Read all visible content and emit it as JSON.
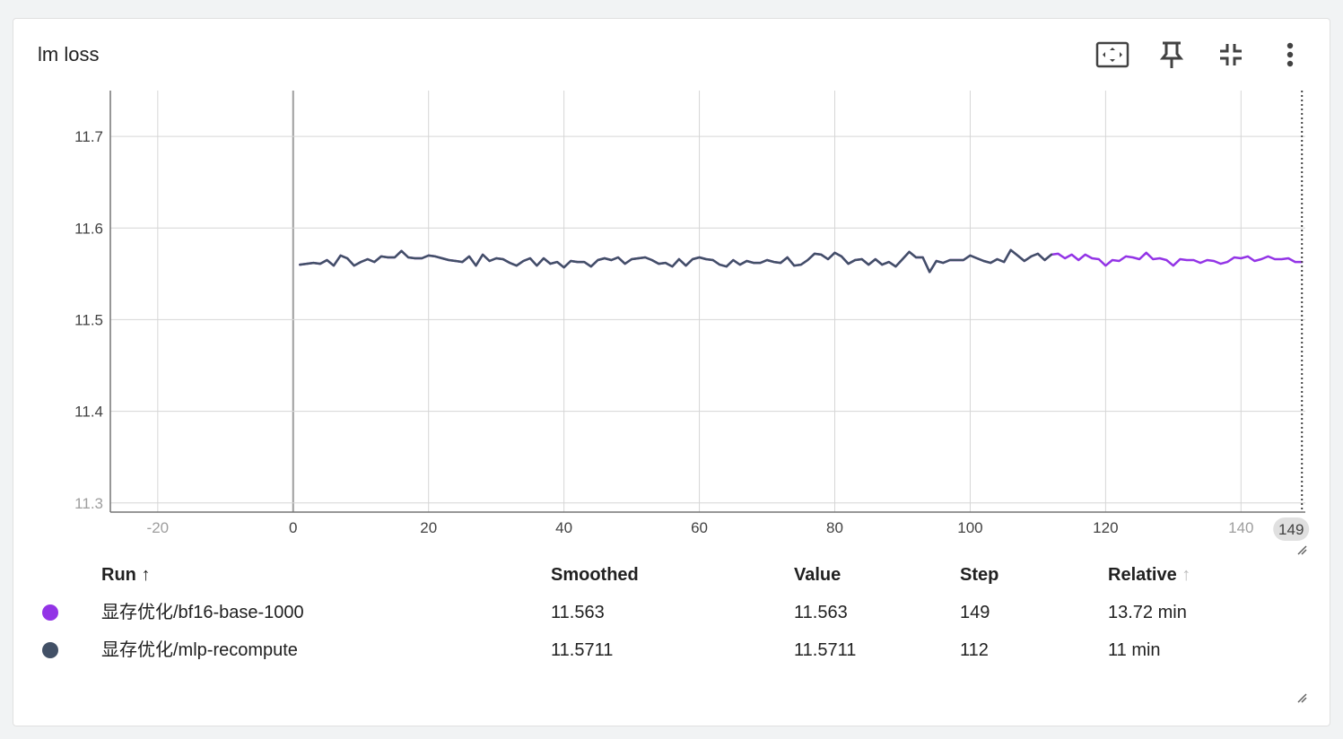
{
  "card": {
    "title": "lm loss",
    "toolbar": {
      "fit_icon": "fit-to-domain-icon",
      "pin_icon": "pin-icon",
      "collapse_icon": "collapse-icon",
      "more_icon": "more-vert-icon"
    }
  },
  "chart_data": {
    "type": "line",
    "title": "lm loss",
    "xlabel": "",
    "ylabel": "",
    "xlim": [
      -27,
      149.5
    ],
    "ylim": [
      11.29,
      11.75
    ],
    "x_ticks": [
      "-20",
      "0",
      "20",
      "40",
      "60",
      "80",
      "100",
      "120",
      "140"
    ],
    "x_tick_values": [
      -20,
      0,
      20,
      40,
      60,
      80,
      100,
      120,
      140
    ],
    "y_ticks": [
      "11.3",
      "11.4",
      "11.5",
      "11.6",
      "11.7"
    ],
    "y_tick_values": [
      11.3,
      11.4,
      11.5,
      11.6,
      11.7
    ],
    "hover_step_label": "149",
    "grid": true,
    "series": [
      {
        "name": "显存优化/bf16-base-1000",
        "color": "#9334e6",
        "x": [
          1,
          2,
          3,
          4,
          5,
          6,
          7,
          8,
          9,
          10,
          11,
          12,
          13,
          14,
          15,
          16,
          17,
          18,
          19,
          20,
          21,
          22,
          23,
          24,
          25,
          26,
          27,
          28,
          29,
          30,
          31,
          32,
          33,
          34,
          35,
          36,
          37,
          38,
          39,
          40,
          41,
          42,
          43,
          44,
          45,
          46,
          47,
          48,
          49,
          50,
          51,
          52,
          53,
          54,
          55,
          56,
          57,
          58,
          59,
          60,
          61,
          62,
          63,
          64,
          65,
          66,
          67,
          68,
          69,
          70,
          71,
          72,
          73,
          74,
          75,
          76,
          77,
          78,
          79,
          80,
          81,
          82,
          83,
          84,
          85,
          86,
          87,
          88,
          89,
          90,
          91,
          92,
          93,
          94,
          95,
          96,
          97,
          98,
          99,
          100,
          101,
          102,
          103,
          104,
          105,
          106,
          107,
          108,
          109,
          110,
          111,
          112,
          113,
          114,
          115,
          116,
          117,
          118,
          119,
          120,
          121,
          122,
          123,
          124,
          125,
          126,
          127,
          128,
          129,
          130,
          131,
          132,
          133,
          134,
          135,
          136,
          137,
          138,
          139,
          140,
          141,
          142,
          143,
          144,
          145,
          146,
          147,
          148,
          149
        ],
        "values": [
          11.56,
          11.561,
          11.562,
          11.561,
          11.565,
          11.559,
          11.57,
          11.567,
          11.559,
          11.563,
          11.566,
          11.563,
          11.569,
          11.568,
          11.568,
          11.575,
          11.568,
          11.567,
          11.567,
          11.57,
          11.569,
          11.567,
          11.565,
          11.564,
          11.563,
          11.569,
          11.559,
          11.571,
          11.564,
          11.567,
          11.566,
          11.562,
          11.559,
          11.564,
          11.567,
          11.559,
          11.567,
          11.561,
          11.563,
          11.557,
          11.564,
          11.563,
          11.563,
          11.558,
          11.565,
          11.567,
          11.565,
          11.568,
          11.561,
          11.566,
          11.567,
          11.568,
          11.565,
          11.561,
          11.562,
          11.558,
          11.566,
          11.559,
          11.566,
          11.568,
          11.566,
          11.565,
          11.56,
          11.558,
          11.565,
          11.56,
          11.564,
          11.562,
          11.562,
          11.565,
          11.563,
          11.562,
          11.568,
          11.559,
          11.56,
          11.565,
          11.572,
          11.571,
          11.566,
          11.573,
          11.569,
          11.561,
          11.565,
          11.566,
          11.56,
          11.566,
          11.56,
          11.563,
          11.558,
          11.566,
          11.574,
          11.568,
          11.568,
          11.552,
          11.564,
          11.562,
          11.565,
          11.565,
          11.565,
          11.57,
          11.567,
          11.564,
          11.562,
          11.566,
          11.563,
          11.576,
          11.57,
          11.564,
          11.569,
          11.572,
          11.565,
          11.571,
          11.572,
          11.567,
          11.571,
          11.565,
          11.571,
          11.567,
          11.566,
          11.559,
          11.565,
          11.564,
          11.569,
          11.568,
          11.566,
          11.573,
          11.566,
          11.567,
          11.565,
          11.559,
          11.566,
          11.565,
          11.565,
          11.562,
          11.565,
          11.564,
          11.561,
          11.563,
          11.568,
          11.567,
          11.569,
          11.564,
          11.566,
          11.569,
          11.566,
          11.566,
          11.567,
          11.563,
          11.563
        ]
      },
      {
        "name": "显存优化/mlp-recompute",
        "color": "#425066",
        "x": [
          1,
          2,
          3,
          4,
          5,
          6,
          7,
          8,
          9,
          10,
          11,
          12,
          13,
          14,
          15,
          16,
          17,
          18,
          19,
          20,
          21,
          22,
          23,
          24,
          25,
          26,
          27,
          28,
          29,
          30,
          31,
          32,
          33,
          34,
          35,
          36,
          37,
          38,
          39,
          40,
          41,
          42,
          43,
          44,
          45,
          46,
          47,
          48,
          49,
          50,
          51,
          52,
          53,
          54,
          55,
          56,
          57,
          58,
          59,
          60,
          61,
          62,
          63,
          64,
          65,
          66,
          67,
          68,
          69,
          70,
          71,
          72,
          73,
          74,
          75,
          76,
          77,
          78,
          79,
          80,
          81,
          82,
          83,
          84,
          85,
          86,
          87,
          88,
          89,
          90,
          91,
          92,
          93,
          94,
          95,
          96,
          97,
          98,
          99,
          100,
          101,
          102,
          103,
          104,
          105,
          106,
          107,
          108,
          109,
          110,
          111,
          112
        ],
        "values": [
          11.56,
          11.561,
          11.562,
          11.561,
          11.565,
          11.559,
          11.57,
          11.567,
          11.559,
          11.563,
          11.566,
          11.563,
          11.569,
          11.568,
          11.568,
          11.575,
          11.568,
          11.567,
          11.567,
          11.57,
          11.569,
          11.567,
          11.565,
          11.564,
          11.563,
          11.569,
          11.559,
          11.571,
          11.564,
          11.567,
          11.566,
          11.562,
          11.559,
          11.564,
          11.567,
          11.559,
          11.567,
          11.561,
          11.563,
          11.557,
          11.564,
          11.563,
          11.563,
          11.558,
          11.565,
          11.567,
          11.565,
          11.568,
          11.561,
          11.566,
          11.567,
          11.568,
          11.565,
          11.561,
          11.562,
          11.558,
          11.566,
          11.559,
          11.566,
          11.568,
          11.566,
          11.565,
          11.56,
          11.558,
          11.565,
          11.56,
          11.564,
          11.562,
          11.562,
          11.565,
          11.563,
          11.562,
          11.568,
          11.559,
          11.56,
          11.565,
          11.572,
          11.571,
          11.566,
          11.573,
          11.569,
          11.561,
          11.565,
          11.566,
          11.56,
          11.566,
          11.56,
          11.563,
          11.558,
          11.566,
          11.574,
          11.568,
          11.568,
          11.552,
          11.564,
          11.562,
          11.565,
          11.565,
          11.565,
          11.57,
          11.567,
          11.564,
          11.562,
          11.566,
          11.563,
          11.576,
          11.57,
          11.564,
          11.569,
          11.572,
          11.565,
          11.5711
        ]
      }
    ]
  },
  "legend": {
    "headers": {
      "run": "Run",
      "smoothed": "Smoothed",
      "value": "Value",
      "step": "Step",
      "relative": "Relative"
    },
    "rows": [
      {
        "color": "#9334e6",
        "run": "显存优化/bf16-base-1000",
        "smoothed": "11.563",
        "value": "11.563",
        "step": "149",
        "relative": "13.72 min"
      },
      {
        "color": "#425066",
        "run": "显存优化/mlp-recompute",
        "smoothed": "11.5711",
        "value": "11.5711",
        "step": "112",
        "relative": "11 min"
      }
    ]
  }
}
